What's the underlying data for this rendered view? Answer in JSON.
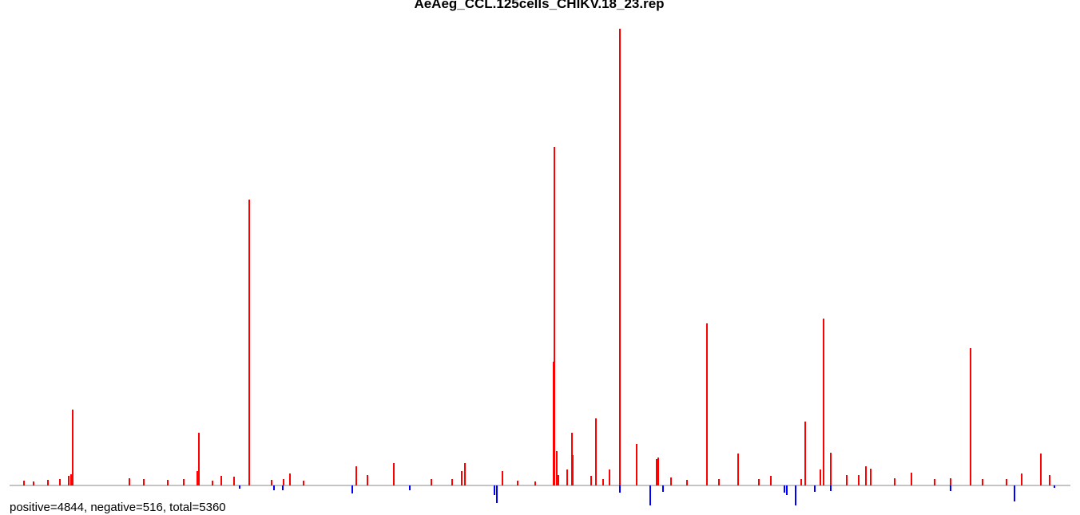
{
  "chart_data": {
    "type": "bar",
    "title": "AeAeg_CCL.125cells_CHIKV.18_23.rep",
    "note": "positive=4844, negative=516, total=5360",
    "xlim": [
      0,
      1352
    ],
    "colors": {
      "positive": "#ff0000",
      "negative": "#0000ff",
      "baseline": "#888888"
    },
    "x": [
      30,
      42,
      60,
      75,
      86,
      89,
      91,
      162,
      180,
      210,
      230,
      247,
      249,
      266,
      277,
      293,
      300,
      312,
      340,
      343,
      354,
      355,
      363,
      380,
      441,
      446,
      460,
      493,
      513,
      540,
      566,
      578,
      582,
      619,
      622,
      629,
      648,
      670,
      693,
      694,
      697,
      699,
      710,
      716,
      717,
      740,
      746,
      755,
      763,
      776,
      776,
      797,
      814,
      822,
      824,
      830,
      840,
      860,
      885,
      900,
      924,
      950,
      965,
      982,
      985,
      996,
      1003,
      1008,
      1020,
      1027,
      1031,
      1040,
      1040,
      1060,
      1075,
      1084,
      1090,
      1120,
      1141,
      1170,
      1190,
      1190,
      1215,
      1230,
      1260,
      1270,
      1279,
      1303,
      1314,
      1320
    ],
    "values": [
      6,
      5,
      7,
      8,
      12,
      14,
      95,
      9,
      8,
      7,
      8,
      18,
      66,
      6,
      12,
      11,
      -4,
      358,
      7,
      -6,
      -6,
      8,
      15,
      6,
      -10,
      24,
      13,
      28,
      -6,
      8,
      8,
      18,
      28,
      -12,
      -22,
      18,
      6,
      5,
      155,
      424,
      43,
      13,
      20,
      66,
      38,
      12,
      84,
      8,
      20,
      572,
      -9,
      52,
      -25,
      33,
      35,
      -8,
      10,
      7,
      203,
      8,
      40,
      8,
      12,
      -9,
      -12,
      -25,
      8,
      80,
      -8,
      20,
      209,
      41,
      -7,
      13,
      13,
      24,
      21,
      9,
      16,
      8,
      9,
      -7,
      172,
      8,
      8,
      -20,
      15,
      40,
      13,
      -3
    ]
  }
}
